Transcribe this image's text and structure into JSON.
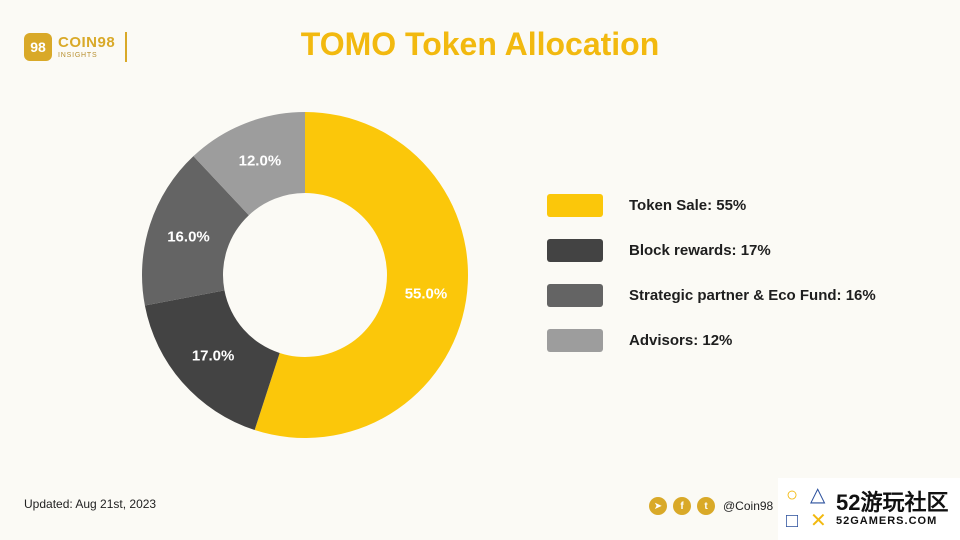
{
  "brand": {
    "mark": "98",
    "name": "COIN98",
    "sub": "INSIGHTS",
    "color": "#d9a928"
  },
  "title": "TOMO Token Allocation",
  "chart_data": {
    "type": "pie",
    "donut": true,
    "title": "TOMO Token Allocation",
    "slices": [
      {
        "label": "Token Sale: 55%",
        "value": 55.0,
        "display": "55.0%",
        "color": "#fbc70a",
        "label_color": "#ffffff"
      },
      {
        "label": "Block rewards: 17%",
        "value": 17.0,
        "display": "17.0%",
        "color": "#434343",
        "label_color": "#ffffff"
      },
      {
        "label": "Strategic partner & Eco Fund: 16%",
        "value": 16.0,
        "display": "16.0%",
        "color": "#646464",
        "label_color": "#ffffff"
      },
      {
        "label": "Advisors: 12%",
        "value": 12.0,
        "display": "12.0%",
        "color": "#9d9d9d",
        "label_color": "#ffffff"
      }
    ],
    "legend_placement": "right"
  },
  "footer": {
    "updated": "Updated: Aug 21st, 2023",
    "social_icons": [
      "telegram-icon",
      "facebook-icon",
      "twitter-icon"
    ],
    "social_glyphs": [
      "➤",
      "f",
      "t"
    ],
    "handle": "@Coin98"
  },
  "overlay_logo": {
    "symbols": [
      "○",
      "△",
      "□",
      "✕"
    ],
    "title": "52游玩社区",
    "subtitle": "52GAMERS.COM"
  }
}
